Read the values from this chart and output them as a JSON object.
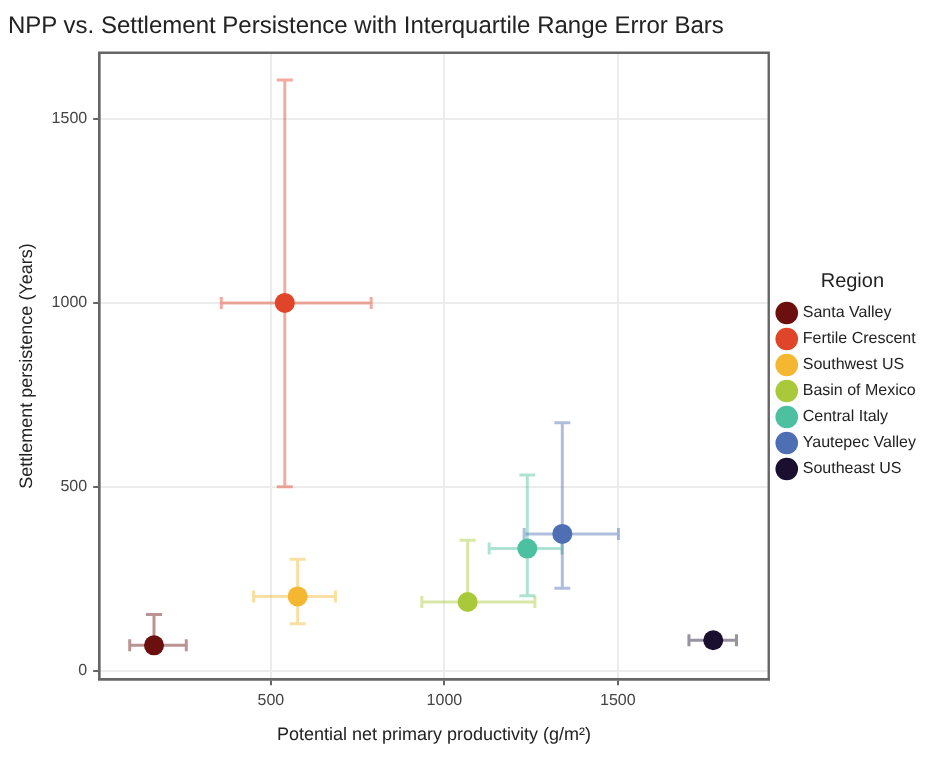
{
  "chart_data": {
    "type": "scatter",
    "title": "NPP vs. Settlement Persistence with Interquartile Range Error Bars",
    "xlabel": "Potential net primary productivity (g/m²)",
    "ylabel": "Settlement persistence (Years)",
    "legend_title": "Region",
    "xlim": [
      5,
      1935
    ],
    "ylim": [
      -23,
      1680
    ],
    "xticks": [
      500,
      1000,
      1500
    ],
    "yticks": [
      0,
      500,
      1000,
      1500
    ],
    "grid": true,
    "legend": "right",
    "marker": "circle",
    "series": [
      {
        "name": "Santa Valley",
        "color": "#6b0f0f",
        "x": [
          163
        ],
        "values": [
          69
        ],
        "xerrors": [
          [
            93,
            256
          ]
        ],
        "errors": [
          [
            55,
            153
          ]
        ]
      },
      {
        "name": "Fertile Crescent",
        "color": "#e0452a",
        "x": [
          540
        ],
        "values": [
          1000
        ],
        "xerrors": [
          [
            357,
            789
          ]
        ],
        "errors": [
          [
            500,
            1606
          ]
        ]
      },
      {
        "name": "Southwest US",
        "color": "#f5b731",
        "x": [
          577
        ],
        "values": [
          202
        ],
        "xerrors": [
          [
            450,
            686
          ]
        ],
        "errors": [
          [
            128,
            303
          ]
        ]
      },
      {
        "name": "Basin of Mexico",
        "color": "#a9c93a",
        "x": [
          1067
        ],
        "values": [
          187
        ],
        "xerrors": [
          [
            935,
            1261
          ]
        ],
        "errors": [
          [
            180,
            355
          ]
        ]
      },
      {
        "name": "Central Italy",
        "color": "#4cc0a0",
        "x": [
          1239
        ],
        "values": [
          332
        ],
        "xerrors": [
          [
            1129,
            1339
          ]
        ],
        "errors": [
          [
            204,
            532
          ]
        ]
      },
      {
        "name": "Yautepec Valley",
        "color": "#4f6fb5",
        "x": [
          1340
        ],
        "values": [
          372
        ],
        "xerrors": [
          [
            1230,
            1502
          ]
        ],
        "errors": [
          [
            224,
            674
          ]
        ]
      },
      {
        "name": "Southeast US",
        "color": "#1a0f2e",
        "x": [
          1775
        ],
        "values": [
          83
        ],
        "xerrors": [
          [
            1705,
            1842
          ]
        ],
        "errors": [
          [
            70,
            95
          ]
        ]
      }
    ]
  }
}
